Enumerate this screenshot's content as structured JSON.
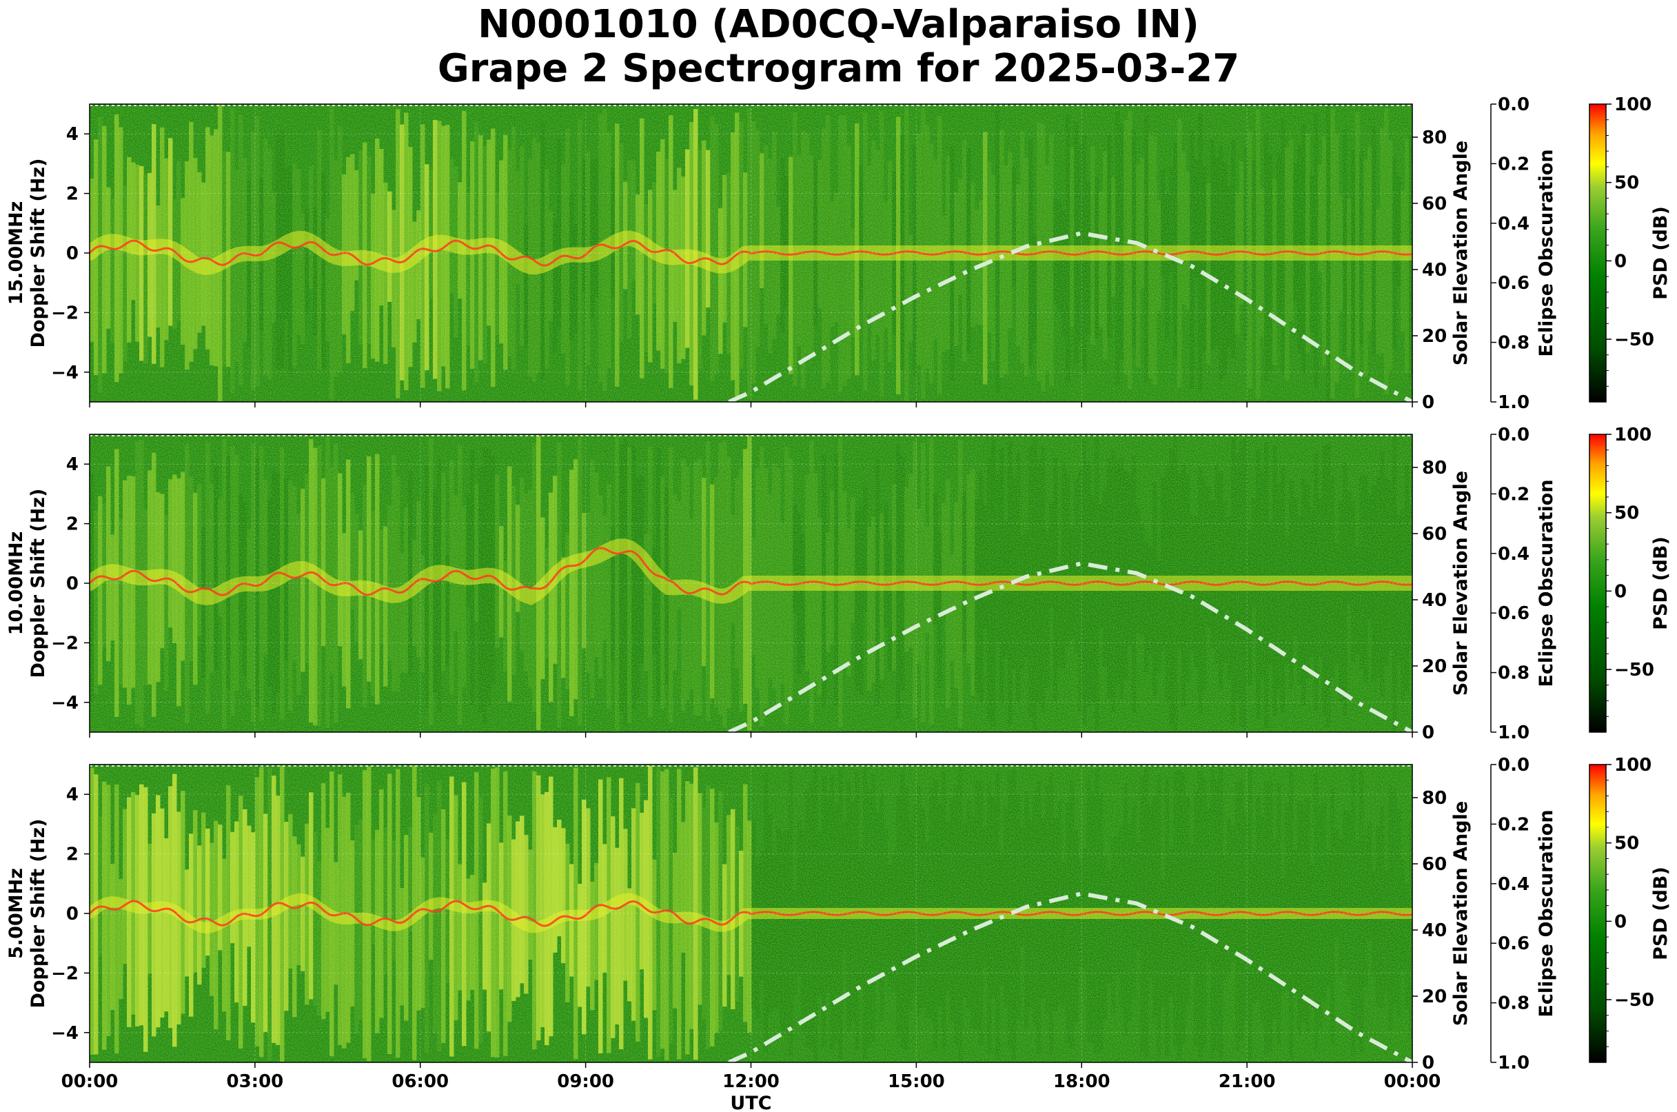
{
  "figure": {
    "title_line1": "N0001010 (AD0CQ-Valparaiso IN)",
    "title_line2": "Grape 2 Spectrogram for 2025-03-27",
    "xlabel": "UTC",
    "x_ticks": [
      "00:00",
      "03:00",
      "06:00",
      "09:00",
      "12:00",
      "15:00",
      "18:00",
      "21:00",
      "00:00"
    ]
  },
  "colors": {
    "colormap": [
      "#000000",
      "#006400",
      "#008000",
      "#228b22",
      "#9acd32",
      "#ffff00",
      "#ffa500",
      "#ff0000"
    ],
    "elevation_curve": "#d8ecd8",
    "doppler_trace": "#ff3b1f"
  },
  "chart_data": [
    {
      "type": "heatmap",
      "name": "15.00MHz",
      "ylabel_line1": "15.00MHz",
      "ylabel_line2": "Doppler Shift (Hz)",
      "ylim": [
        -5,
        5
      ],
      "y_ticks": [
        "4",
        "2",
        "0",
        "−2",
        "−4"
      ],
      "y_tick_values": [
        4,
        2,
        0,
        -2,
        -4
      ],
      "x_hours": [
        0,
        24
      ],
      "secondary_axis": {
        "label": "Solar Elevation Angle",
        "ylim": [
          0,
          90
        ],
        "ticks": [
          "80",
          "60",
          "40",
          "20",
          "0"
        ],
        "tick_values": [
          80,
          60,
          40,
          20,
          0
        ]
      },
      "tertiary_axis": {
        "label": "Eclipse Obscuration",
        "ylim": [
          1.0,
          0.0
        ],
        "ticks": [
          "0.0",
          "0.2",
          "0.4",
          "0.6",
          "0.8",
          "1.0"
        ]
      },
      "colorbar": {
        "label": "PSD (dB)",
        "range": [
          -90,
          100
        ],
        "ticks": [
          "100",
          "50",
          "0",
          "−50"
        ],
        "tick_values": [
          100,
          50,
          0,
          -50
        ]
      },
      "solar_elevation": {
        "hours": [
          11.6,
          12,
          13,
          14,
          15,
          16,
          17,
          18,
          19,
          20,
          21,
          22,
          23,
          24
        ],
        "degrees": [
          0,
          3,
          13,
          23,
          32,
          40,
          47,
          51,
          48,
          41,
          31,
          20,
          9,
          0
        ]
      }
    },
    {
      "type": "heatmap",
      "name": "10.00MHz",
      "ylabel_line1": "10.00MHz",
      "ylabel_line2": "Doppler Shift (Hz)",
      "ylim": [
        -5,
        5
      ],
      "y_ticks": [
        "4",
        "2",
        "0",
        "−2",
        "−4"
      ],
      "y_tick_values": [
        4,
        2,
        0,
        -2,
        -4
      ],
      "x_hours": [
        0,
        24
      ],
      "secondary_axis": {
        "label": "Solar Elevation Angle",
        "ylim": [
          0,
          90
        ],
        "ticks": [
          "80",
          "60",
          "40",
          "20",
          "0"
        ],
        "tick_values": [
          80,
          60,
          40,
          20,
          0
        ]
      },
      "tertiary_axis": {
        "label": "Eclipse Obscuration",
        "ylim": [
          1.0,
          0.0
        ],
        "ticks": [
          "0.0",
          "0.2",
          "0.4",
          "0.6",
          "0.8",
          "1.0"
        ]
      },
      "colorbar": {
        "label": "PSD (dB)",
        "range": [
          -90,
          100
        ],
        "ticks": [
          "100",
          "50",
          "0",
          "−50"
        ],
        "tick_values": [
          100,
          50,
          0,
          -50
        ]
      },
      "solar_elevation": {
        "hours": [
          11.6,
          12,
          13,
          14,
          15,
          16,
          17,
          18,
          19,
          20,
          21,
          22,
          23,
          24
        ],
        "degrees": [
          0,
          3,
          13,
          23,
          32,
          40,
          47,
          51,
          48,
          41,
          31,
          20,
          9,
          0
        ]
      }
    },
    {
      "type": "heatmap",
      "name": "5.00MHz",
      "ylabel_line1": "5.00MHz",
      "ylabel_line2": "Doppler Shift (Hz)",
      "ylim": [
        -5,
        5
      ],
      "y_ticks": [
        "4",
        "2",
        "0",
        "−2",
        "−4"
      ],
      "y_tick_values": [
        4,
        2,
        0,
        -2,
        -4
      ],
      "x_hours": [
        0,
        24
      ],
      "secondary_axis": {
        "label": "Solar Elevation Angle",
        "ylim": [
          0,
          90
        ],
        "ticks": [
          "80",
          "60",
          "40",
          "20",
          "0"
        ],
        "tick_values": [
          80,
          60,
          40,
          20,
          0
        ]
      },
      "tertiary_axis": {
        "label": "Eclipse Obscuration",
        "ylim": [
          1.0,
          0.0
        ],
        "ticks": [
          "0.0",
          "0.2",
          "0.4",
          "0.6",
          "0.8",
          "1.0"
        ]
      },
      "colorbar": {
        "label": "PSD (dB)",
        "range": [
          -90,
          100
        ],
        "ticks": [
          "100",
          "50",
          "0",
          "−50"
        ],
        "tick_values": [
          100,
          50,
          0,
          -50
        ]
      },
      "solar_elevation": {
        "hours": [
          11.6,
          12,
          13,
          14,
          15,
          16,
          17,
          18,
          19,
          20,
          21,
          22,
          23,
          24
        ],
        "degrees": [
          0,
          3,
          13,
          23,
          32,
          40,
          47,
          51,
          48,
          41,
          31,
          20,
          9,
          0
        ]
      }
    }
  ]
}
